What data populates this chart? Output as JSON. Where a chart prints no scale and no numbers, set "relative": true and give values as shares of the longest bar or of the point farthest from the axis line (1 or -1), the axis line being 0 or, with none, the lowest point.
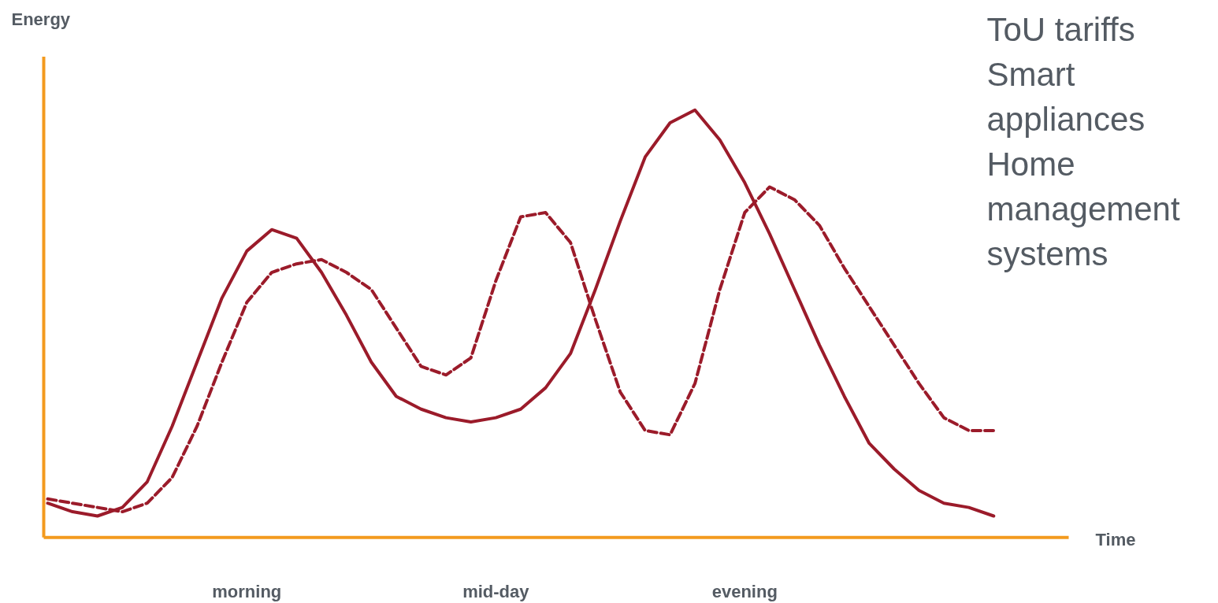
{
  "chart_data": {
    "type": "line",
    "relative": true,
    "ylabel": "Energy",
    "categories": [
      null,
      null,
      null,
      null,
      null,
      null,
      null,
      null,
      "morning",
      null,
      null,
      null,
      null,
      null,
      null,
      null,
      null,
      null,
      "mid-day",
      null,
      null,
      null,
      null,
      null,
      null,
      null,
      null,
      null,
      "evening",
      null,
      null,
      null,
      null,
      null,
      null,
      null,
      null,
      null,
      null
    ],
    "series": [
      {
        "color": "#9b1b2a",
        "line_style": "solid",
        "values": [
          0.08,
          0.06,
          0.05,
          0.07,
          0.13,
          0.26,
          0.41,
          0.56,
          0.67,
          0.72,
          0.7,
          0.62,
          0.52,
          0.41,
          0.33,
          0.3,
          0.28,
          0.27,
          0.28,
          0.3,
          0.35,
          0.43,
          0.58,
          0.74,
          0.89,
          0.97,
          1.0,
          0.93,
          0.83,
          0.71,
          0.58,
          0.45,
          0.33,
          0.22,
          0.16,
          0.11,
          0.08,
          0.07,
          0.05
        ]
      },
      {
        "color": "#9b1b2a",
        "line_style": "dashed",
        "values": [
          0.09,
          0.08,
          0.07,
          0.06,
          0.08,
          0.14,
          0.26,
          0.41,
          0.55,
          0.62,
          0.64,
          0.65,
          0.62,
          0.58,
          0.49,
          0.4,
          0.38,
          0.42,
          0.6,
          0.75,
          0.76,
          0.69,
          0.51,
          0.34,
          0.25,
          0.24,
          0.36,
          0.58,
          0.76,
          0.82,
          0.79,
          0.73,
          0.63,
          0.54,
          0.45,
          0.36,
          0.28,
          0.25,
          0.25
        ]
      }
    ],
    "annotations": [
      "ToU tariffs",
      "Smart appliances",
      "Home management systems",
      {
        "text": "Time"
      }
    ],
    "grid": false
  }
}
